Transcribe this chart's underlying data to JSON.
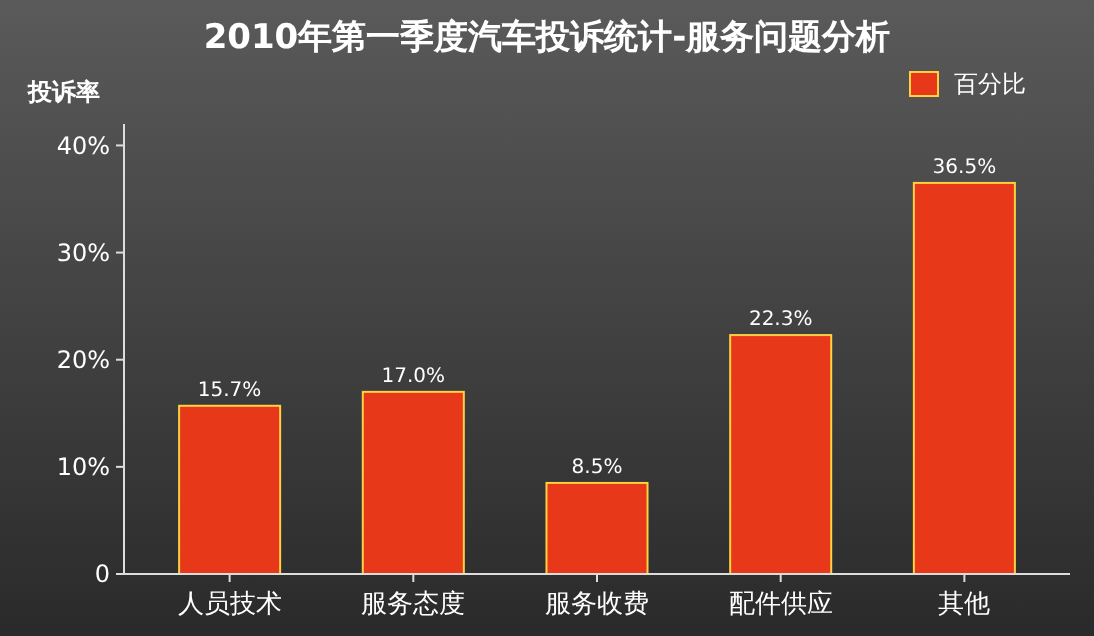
{
  "chart_data": {
    "type": "bar",
    "title": "2010年第一季度汽车投诉统计-服务问题分析",
    "ylabel": "投诉率",
    "categories": [
      "人员技术",
      "服务态度",
      "服务收费",
      "配件供应",
      "其他"
    ],
    "series": [
      {
        "name": "百分比",
        "color": "#e8381a",
        "values": [
          15.7,
          17.0,
          8.5,
          22.3,
          36.5
        ],
        "value_labels": [
          "15.7%",
          "17.0%",
          "8.5%",
          "22.3%",
          "36.5%"
        ]
      }
    ],
    "ylim": [
      0,
      42
    ],
    "yticks": [
      {
        "value": 0,
        "label": "0"
      },
      {
        "value": 10,
        "label": "10%"
      },
      {
        "value": 20,
        "label": "20%"
      },
      {
        "value": 30,
        "label": "30%"
      },
      {
        "value": 40,
        "label": "40%"
      }
    ],
    "legend": "top right"
  }
}
